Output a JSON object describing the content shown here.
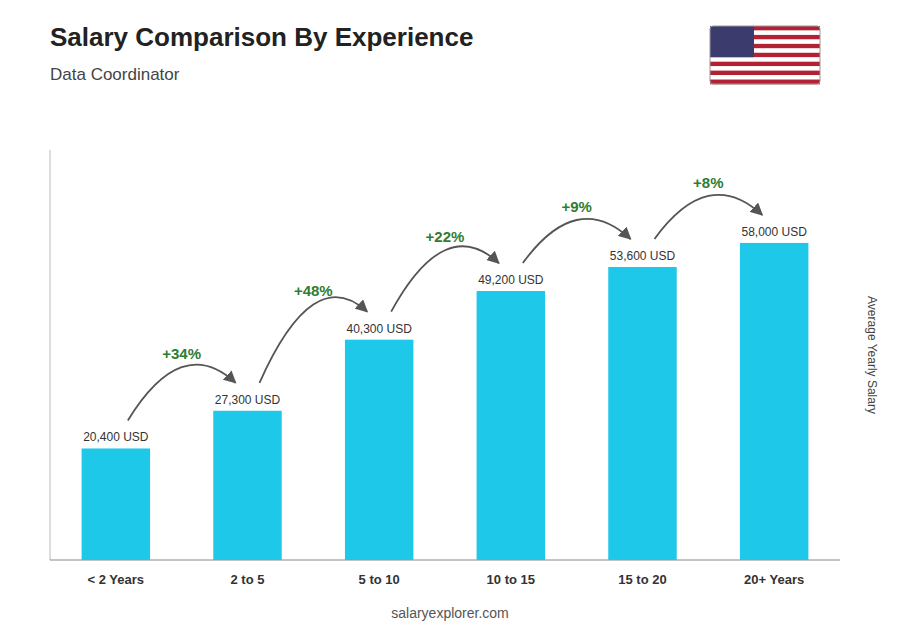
{
  "chart_data": {
    "type": "bar",
    "title": "Salary Comparison By Experience",
    "subtitle": "Data Coordinator",
    "categories": [
      "< 2 Years",
      "2 to 5",
      "5 to 10",
      "10 to 15",
      "15 to 20",
      "20+ Years"
    ],
    "values": [
      20400,
      27300,
      40300,
      49200,
      53600,
      58000
    ],
    "value_labels": [
      "20,400 USD",
      "27,300 USD",
      "40,300 USD",
      "49,200 USD",
      "53,600 USD",
      "58,000 USD"
    ],
    "data_labels": true,
    "annotations": [
      "+34%",
      "+48%",
      "+22%",
      "+9%",
      "+8%"
    ],
    "color": "#1EC8E8",
    "ylabel": "Average Yearly Salary",
    "footer": "salaryexplorer.com",
    "ylim": [
      0,
      75000
    ],
    "tick_labels": "x",
    "grid": false
  }
}
